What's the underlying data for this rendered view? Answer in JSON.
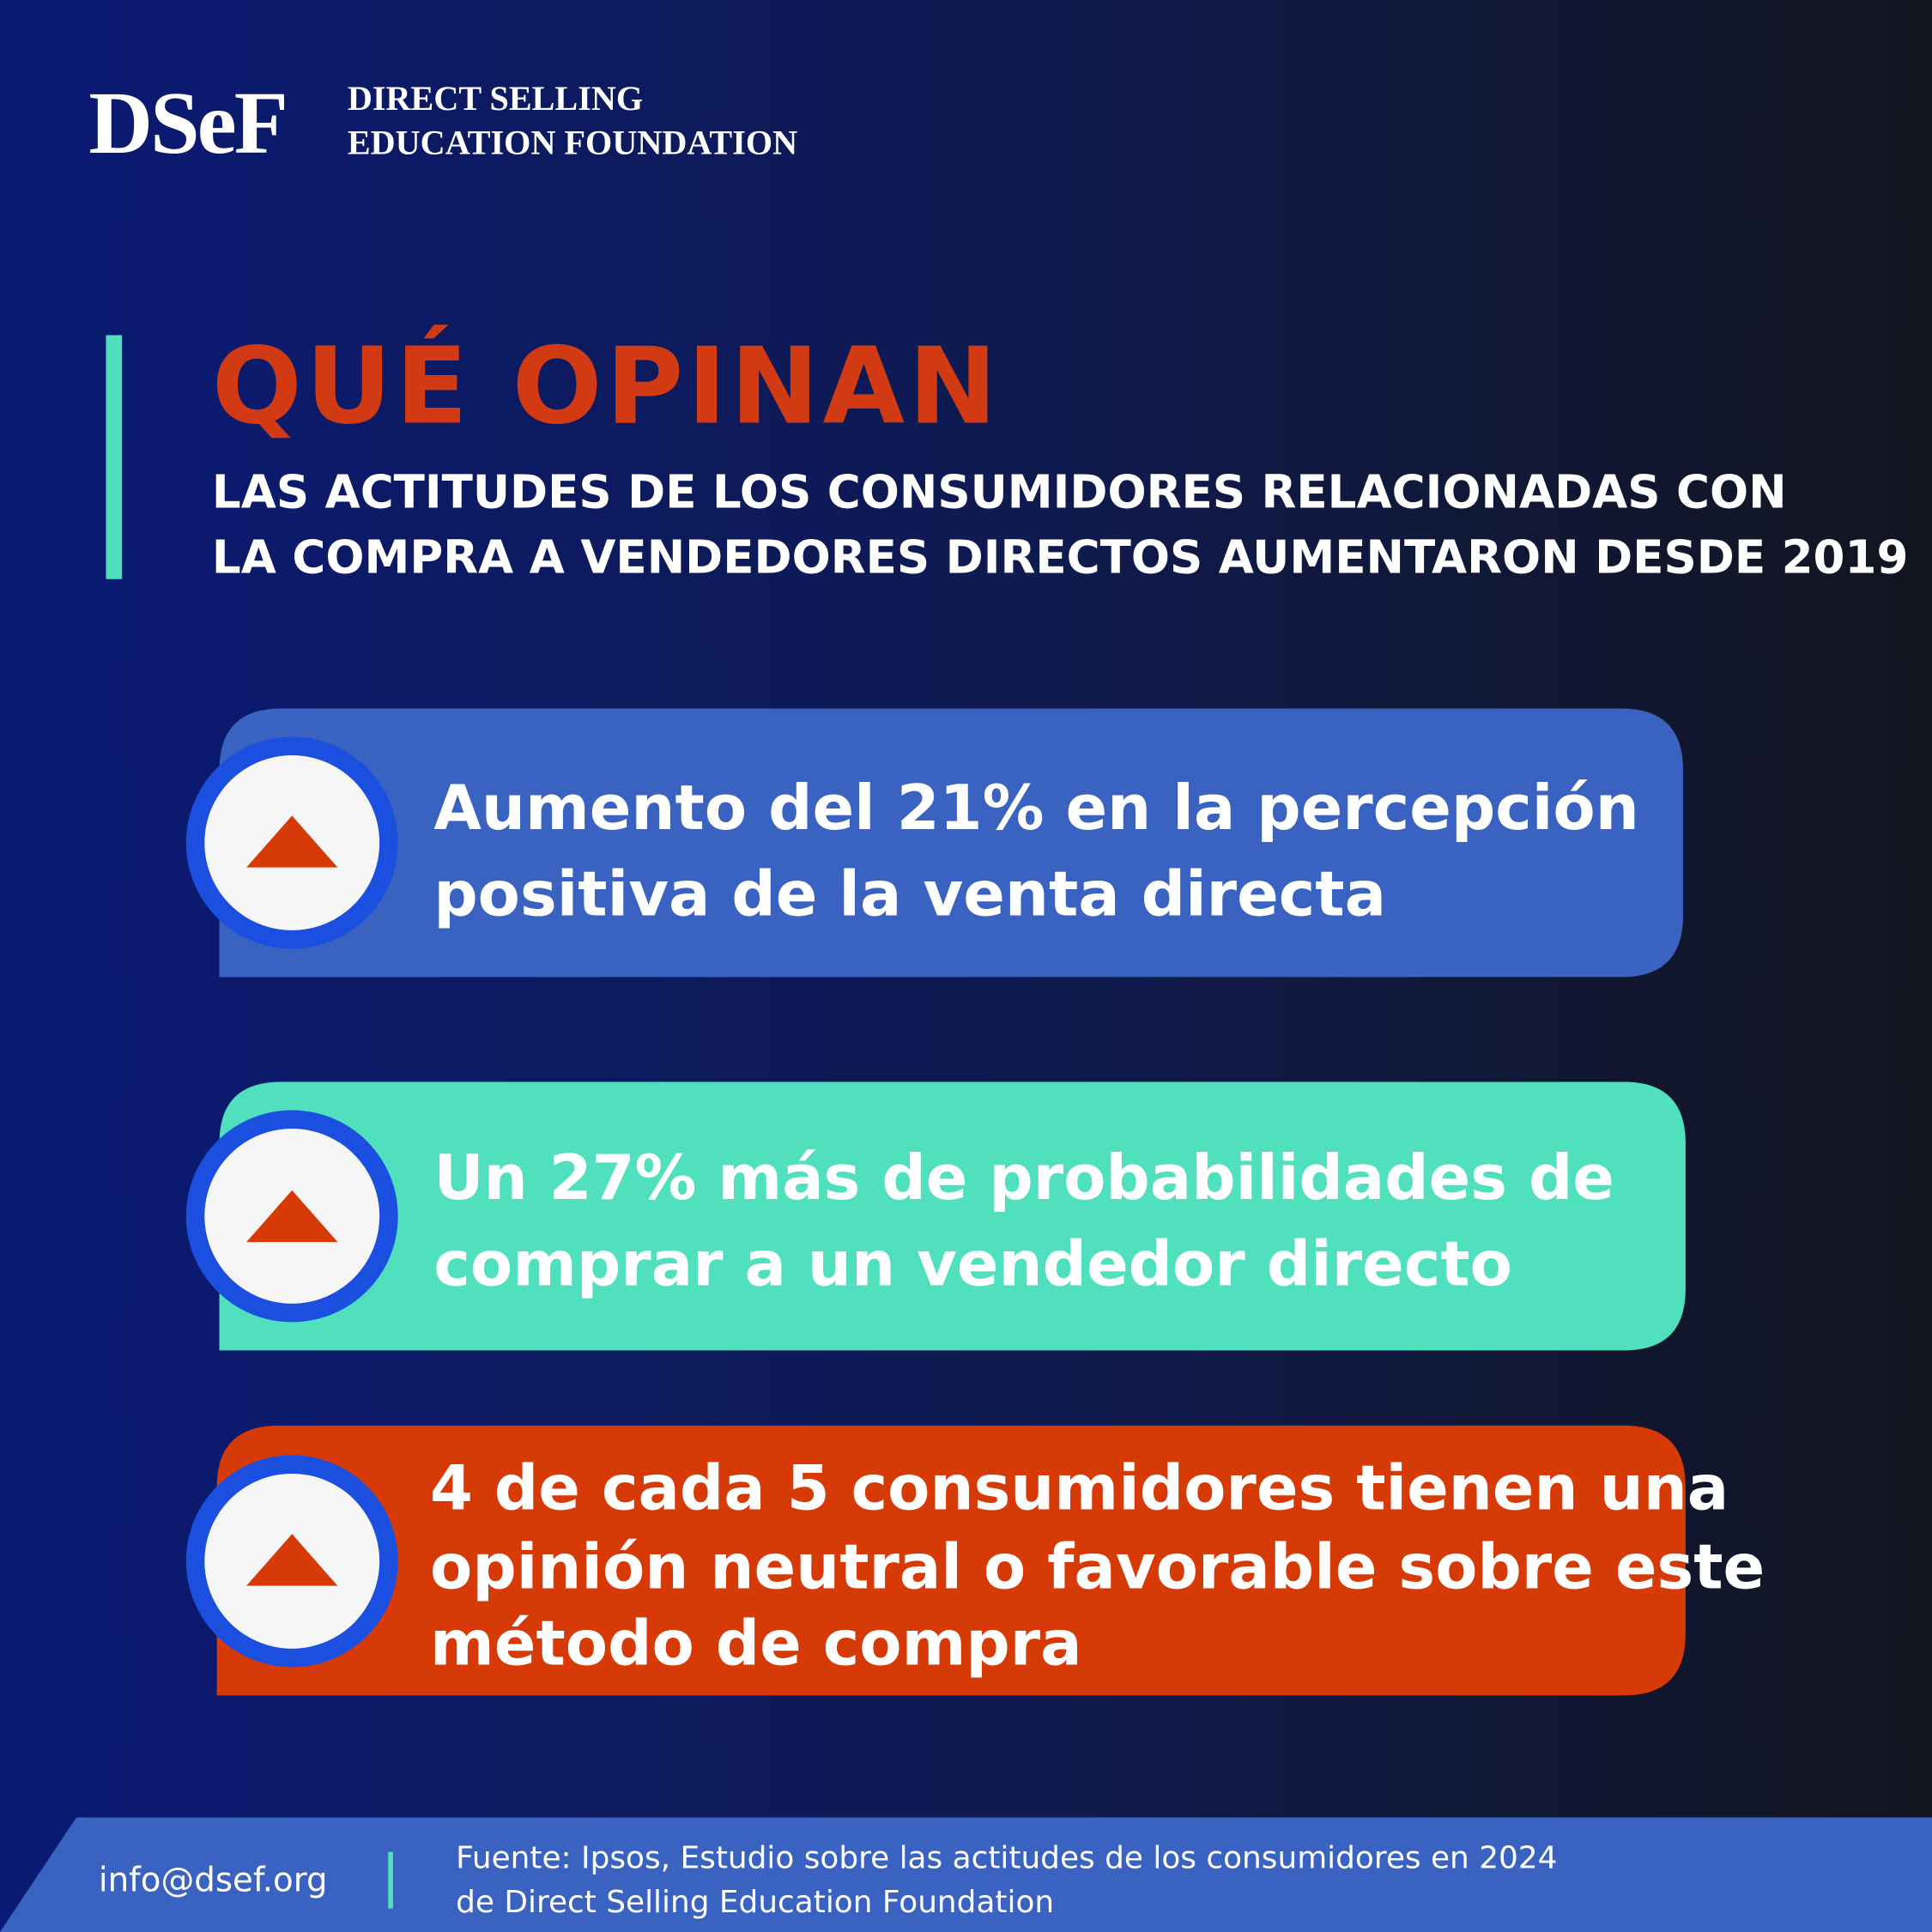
{
  "header": {
    "logo": "DSeF",
    "org_line1": "DIRECT SELLING",
    "org_line2": "EDUCATION FOUNDATION"
  },
  "title": "QUÉ OPINAN",
  "subtitle": [
    "LAS ACTITUDES DE LOS CONSUMIDORES RELACIONADAS CON",
    "LA COMPRA A VENDEDORES DIRECTOS AUMENTARON DESDE 2019"
  ],
  "cards": [
    {
      "lines": [
        "Aumento del 21% en la percepción",
        "positiva de la venta directa"
      ]
    },
    {
      "lines": [
        "Un 27% más de probabilidades de",
        "comprar a un vendedor directo"
      ]
    },
    {
      "lines": [
        "4 de cada 5 consumidores tienen una",
        "opinión neutral o favorable sobre este",
        "método de compra"
      ]
    }
  ],
  "footer": {
    "email": "info@dsef.org",
    "source": [
      "Fuente: Ipsos, Estudio sobre las actitudes de los consumidores en 2024",
      "de Direct Selling Education Foundation"
    ]
  }
}
